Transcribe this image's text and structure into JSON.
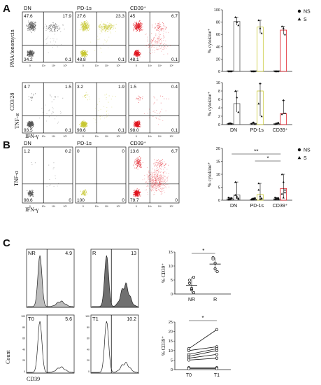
{
  "colors": {
    "DN": "#555555",
    "PD1": "#c8c832",
    "CD39": "#e0141e",
    "axis": "#222222",
    "histFillNR": "#bdbdbd",
    "histFillR": "#707070"
  },
  "panelA": {
    "letter": "A",
    "rowLabel1": "PMA/ionomycin",
    "rowLabel2": "CD3/28",
    "yAxis": "TNF-α",
    "xAxis": "IFN-γ",
    "cols": [
      {
        "title": "DN",
        "row1": [
          "47.6",
          "17.9",
          "34.2",
          "0.1"
        ],
        "row2": [
          "4.7",
          "1.5",
          "93.5",
          "0.1"
        ]
      },
      {
        "title": "PD-1s",
        "row1": [
          "27.6",
          "23.3",
          "48.8",
          "0.1"
        ],
        "row2": [
          "3.2",
          "1.9",
          "98.6",
          "0.1"
        ]
      },
      {
        "title": "CD39⁺",
        "row1": [
          "45",
          "6.7",
          "48.1",
          "0.1"
        ],
        "row2": [
          "1.5",
          "0.4",
          "98.0",
          "0.1"
        ]
      }
    ],
    "ticks": [
      "0",
      "10³",
      "10⁴",
      "10⁵"
    ]
  },
  "panelB": {
    "letter": "B",
    "yAxis": "TNF-α",
    "xAxis": "IFN-γ",
    "cols": [
      {
        "title": "DN",
        "q": [
          "1.2",
          "0.2",
          "98.6",
          "0"
        ]
      },
      {
        "title": "PD-1s",
        "q": [
          "0",
          "0",
          "100",
          "0"
        ]
      },
      {
        "title": "CD39⁺",
        "q": [
          "13.6",
          "6.7",
          "79.7",
          "0"
        ]
      }
    ]
  },
  "panelC": {
    "letter": "C",
    "yAxis": "Count",
    "xAxis": "CD39",
    "hist": [
      {
        "name": "NR",
        "value": "4.9"
      },
      {
        "name": "R",
        "value": "13"
      },
      {
        "name": "T0",
        "value": "5.6"
      },
      {
        "name": "T1",
        "value": "10.2"
      }
    ],
    "histY": [
      "100",
      "80",
      "60",
      "40",
      "20",
      "0"
    ]
  },
  "chart_data": [
    {
      "type": "bar",
      "panel": "A-top",
      "ylabel": "% cytokine⁺",
      "categories": [
        "DN",
        "PD-1s",
        "CD39⁺"
      ],
      "ylim": [
        0,
        100
      ],
      "yticks": [
        0,
        20,
        40,
        60,
        80,
        100
      ],
      "legend": [
        "NS",
        "S"
      ],
      "legend_position": "top-right",
      "series": [
        {
          "name": "NS",
          "values": [
            1,
            1,
            1
          ],
          "points": [
            [
              0,
              0,
              0
            ],
            [
              0,
              0,
              0
            ],
            [
              0,
              0,
              0
            ]
          ]
        },
        {
          "name": "S",
          "values": [
            81,
            72,
            67
          ],
          "points": [
            [
              88,
              80,
              75
            ],
            [
              83,
              70,
              62
            ],
            [
              73,
              70,
              60
            ]
          ]
        }
      ]
    },
    {
      "type": "bar",
      "panel": "A-bottom",
      "ylabel": "% cytokine⁺",
      "categories": [
        "DN",
        "PD-1s",
        "CD39⁺"
      ],
      "ylim": [
        0,
        10
      ],
      "yticks": [
        0,
        2,
        4,
        6,
        8,
        10
      ],
      "series": [
        {
          "name": "NS",
          "values": [
            0.2,
            0.3,
            0.2
          ],
          "points": [
            [
              0.2,
              0.3,
              0.2
            ],
            [
              0.2,
              0.5,
              0.1
            ],
            [
              0.1,
              0.2,
              0.4
            ]
          ]
        },
        {
          "name": "S",
          "values": [
            5,
            8,
            2.6
          ],
          "points": [
            [
              8,
              6.5,
              3
            ],
            [
              5,
              9.8,
              2
            ],
            [
              2.5,
              5.8,
              2.7
            ]
          ]
        }
      ]
    },
    {
      "type": "bar",
      "panel": "B",
      "ylabel": "% cytokine⁺",
      "categories": [
        "DN",
        "PD-1s",
        "CD39⁺"
      ],
      "ylim": [
        0,
        20
      ],
      "yticks": [
        0,
        5,
        10,
        15,
        20
      ],
      "legend": [
        "NS",
        "S"
      ],
      "legend_position": "top-right",
      "annotations": [
        {
          "between": [
            "DN",
            "CD39⁺"
          ],
          "text": "**"
        },
        {
          "between": [
            "PD-1s",
            "CD39⁺"
          ],
          "text": "*"
        }
      ],
      "series": [
        {
          "name": "NS",
          "values": [
            0.5,
            0.4,
            0.5
          ],
          "points": [
            [
              0.2,
              0.5,
              0.8,
              1,
              0.3,
              0.6
            ],
            [
              0.2,
              0.6,
              0.8,
              0.4,
              0.3,
              0.5
            ],
            [
              0.3,
              0.5,
              0.8,
              1,
              0.6,
              0.4
            ]
          ]
        },
        {
          "name": "S",
          "values": [
            2,
            2.2,
            4.5
          ],
          "points": [
            [
              7,
              1.5,
              0.5,
              2,
              1,
              0.8
            ],
            [
              6.5,
              1.5,
              0.8,
              4,
              0.5,
              0.6
            ],
            [
              10,
              7,
              4,
              2.5,
              1,
              3
            ]
          ]
        }
      ]
    },
    {
      "type": "scatter",
      "panel": "C-top",
      "ylabel": "% CD39⁺",
      "categories": [
        "NR",
        "R"
      ],
      "ylim": [
        0,
        15
      ],
      "yticks": [
        0,
        5,
        10,
        15
      ],
      "annotation": "*",
      "series": [
        {
          "name": "NR",
          "values": [
            4.9,
            1.5,
            0.5,
            3.8,
            2,
            6
          ]
        },
        {
          "name": "R",
          "values": [
            13,
            9,
            8,
            12.5,
            11
          ]
        }
      ]
    },
    {
      "type": "line",
      "panel": "C-bottom",
      "ylabel": "% CD39⁺",
      "categories": [
        "T0",
        "T1"
      ],
      "ylim": [
        0,
        25
      ],
      "yticks": [
        0,
        5,
        10,
        15,
        20,
        25
      ],
      "annotation": "*",
      "pairs": [
        [
          11,
          21
        ],
        [
          10,
          12
        ],
        [
          8,
          11
        ],
        [
          7,
          10
        ],
        [
          6,
          8
        ],
        [
          5,
          6
        ],
        [
          1,
          1
        ],
        [
          0.5,
          0.5
        ]
      ]
    }
  ]
}
